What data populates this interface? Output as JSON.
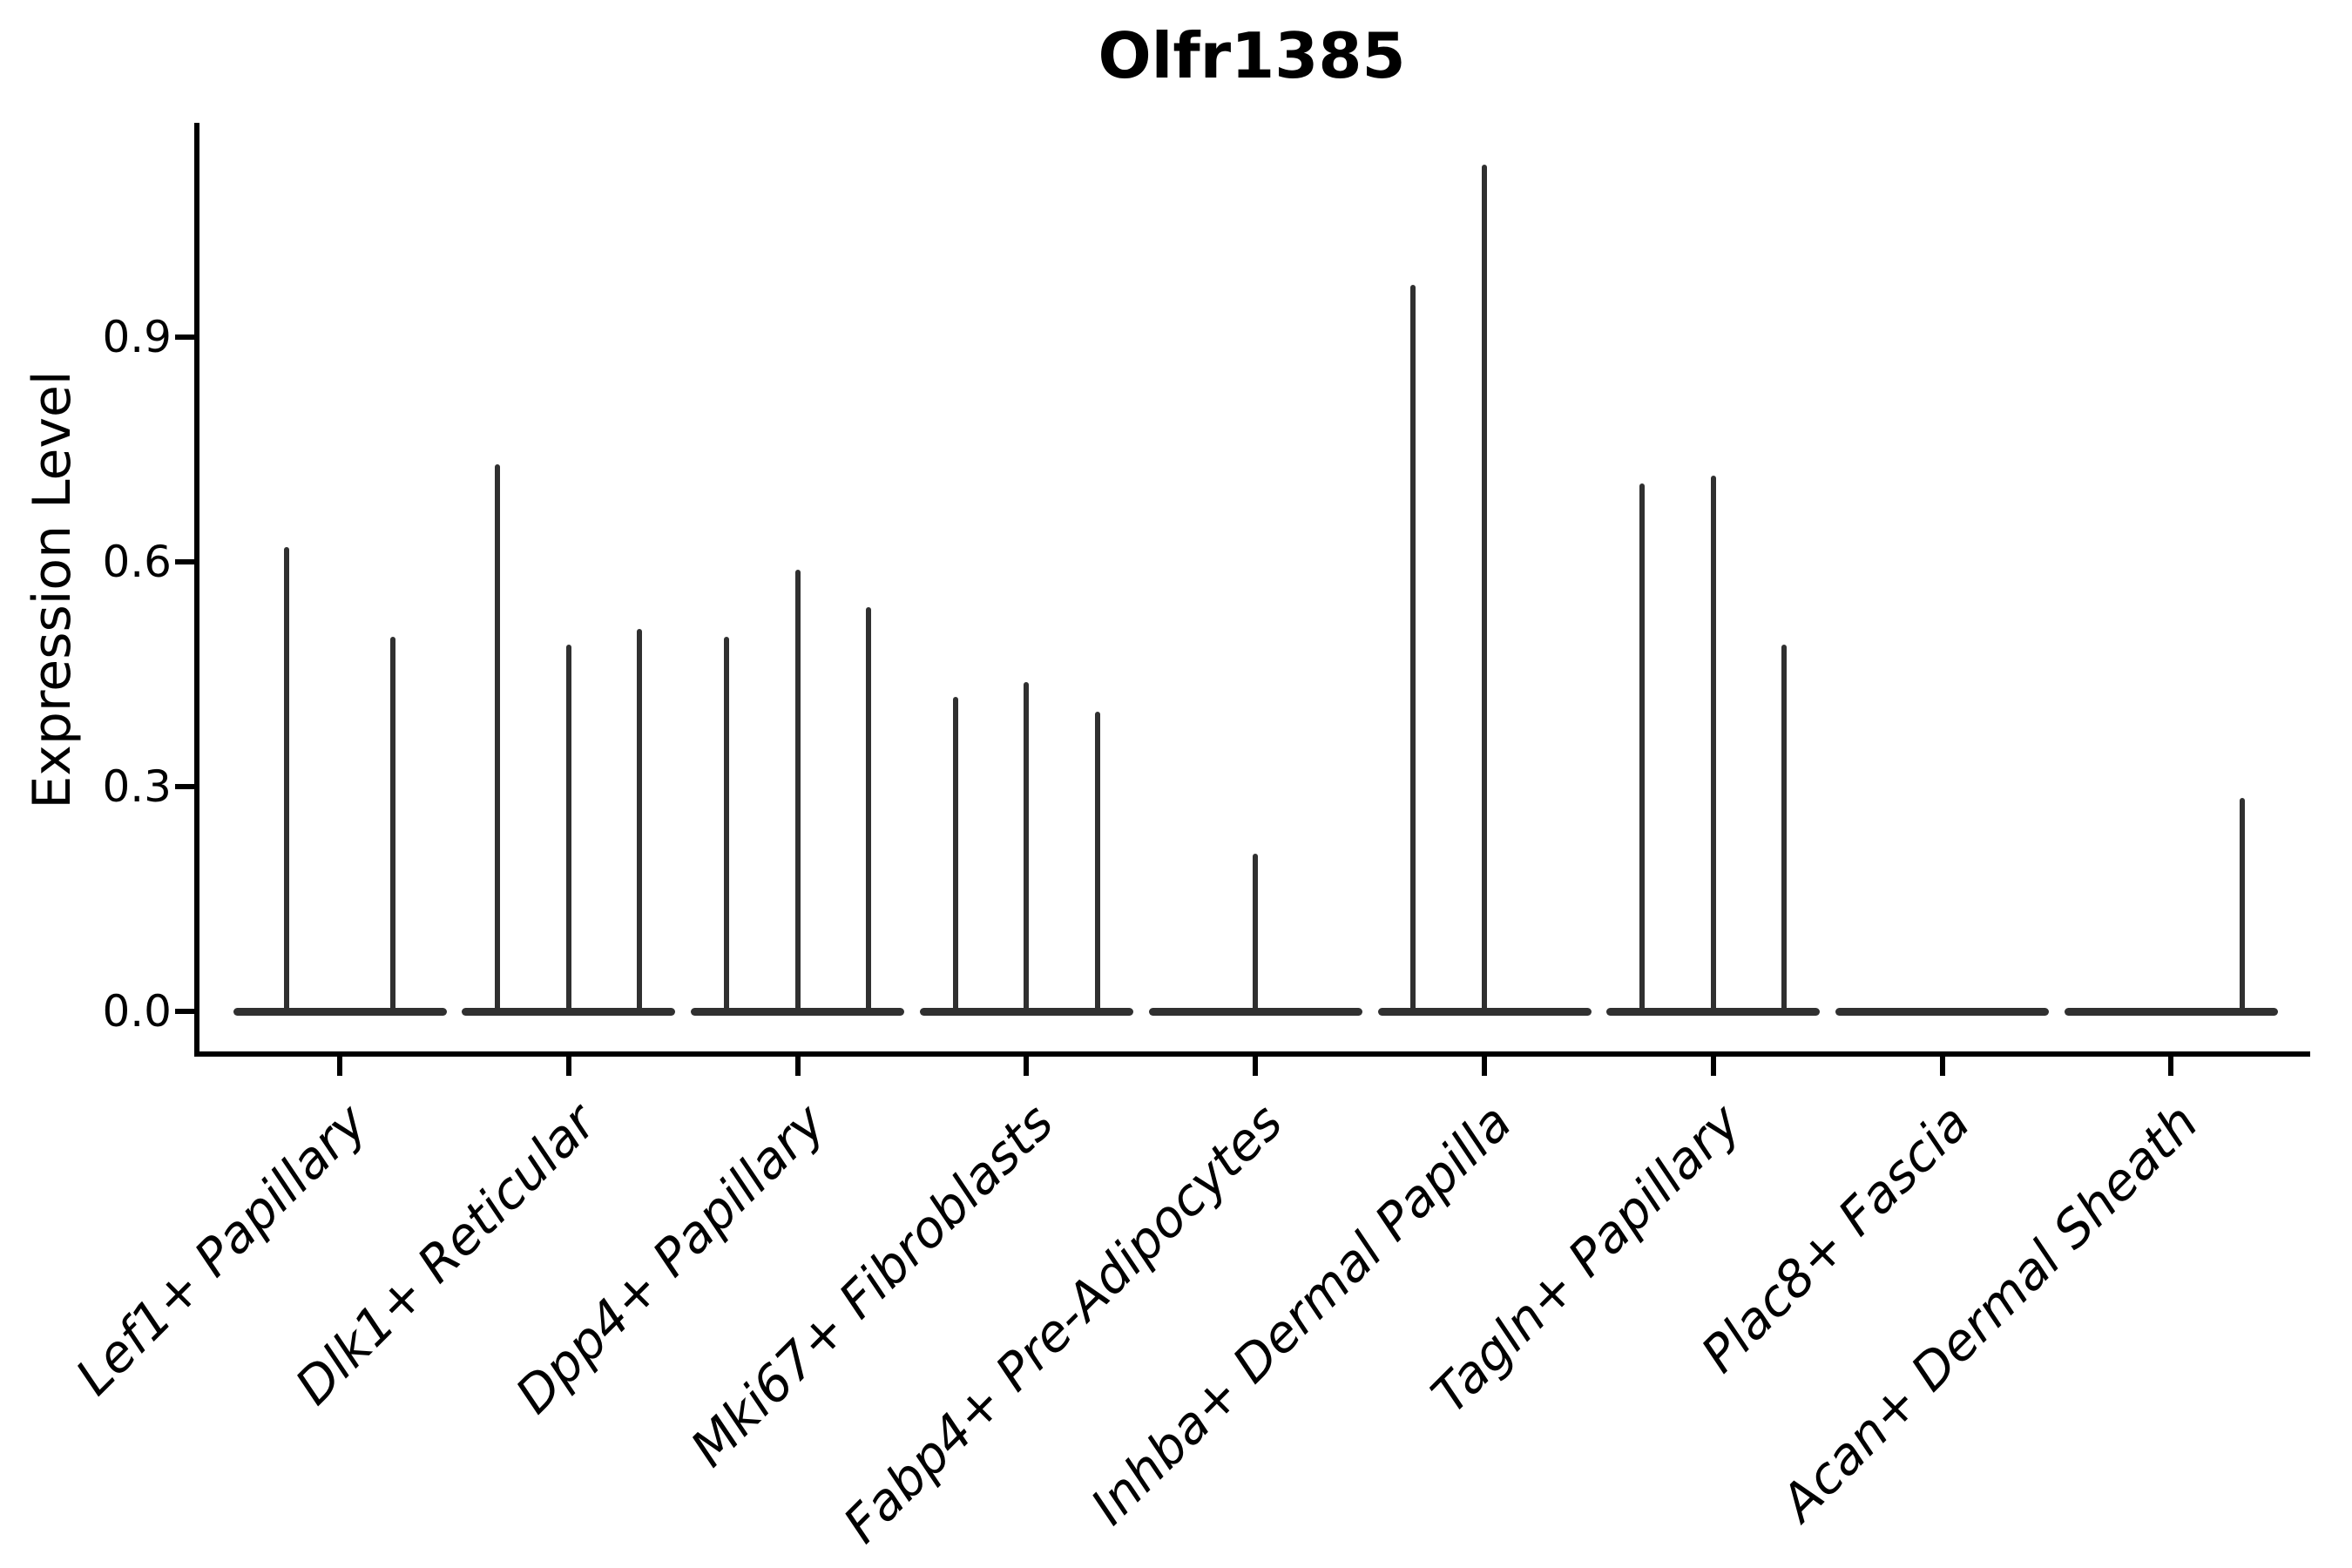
{
  "title": "Olfr1385",
  "chart_data": {
    "type": "violin",
    "title": "Olfr1385",
    "xlabel": "",
    "ylabel": "Expression Level",
    "grid": false,
    "legend_position": "none",
    "y_axis": {
      "tick_values": [
        0.0,
        0.3,
        0.6,
        0.9
      ],
      "tick_labels": [
        "0.0",
        "0.3",
        "0.6",
        "0.9"
      ],
      "ylim": [
        0,
        1.18
      ]
    },
    "description": "Violin plot of gene expression; each category shows flat zero-density baselines with thin density spikes rising to the maximum expression value of each sub-violin. Null means the sub-violin is all zeros (no spike).",
    "categories": [
      {
        "label": "Lef1+ Papillary",
        "n_violins": 2,
        "spike_values": [
          0.62,
          0.5
        ]
      },
      {
        "label": "Dlk1+ Reticular",
        "n_violins": 3,
        "spike_values": [
          0.73,
          0.49,
          0.51
        ]
      },
      {
        "label": "Dpp4+ Papillary",
        "n_violins": 3,
        "spike_values": [
          0.5,
          0.59,
          0.54
        ]
      },
      {
        "label": "Mki67+ Fibroblasts",
        "n_violins": 3,
        "spike_values": [
          0.42,
          0.44,
          0.4
        ]
      },
      {
        "label": "Fabp4+ Pre-Adipocytes",
        "n_violins": 3,
        "spike_values": [
          null,
          0.21,
          null
        ]
      },
      {
        "label": "Inhba+ Dermal Papilla",
        "n_violins": 3,
        "spike_values": [
          0.97,
          1.13,
          null
        ]
      },
      {
        "label": "Tagln+ Papillary",
        "n_violins": 3,
        "spike_values": [
          0.705,
          0.715,
          0.49
        ]
      },
      {
        "label": "Plac8+ Fascia",
        "n_violins": 3,
        "spike_values": [
          null,
          null,
          null
        ]
      },
      {
        "label": "Acan+ Dermal Sheath",
        "n_violins": 3,
        "spike_values": [
          null,
          null,
          0.285
        ]
      }
    ],
    "colors": {
      "violin": "#303030",
      "axis": "#000000",
      "background": "#ffffff"
    }
  }
}
